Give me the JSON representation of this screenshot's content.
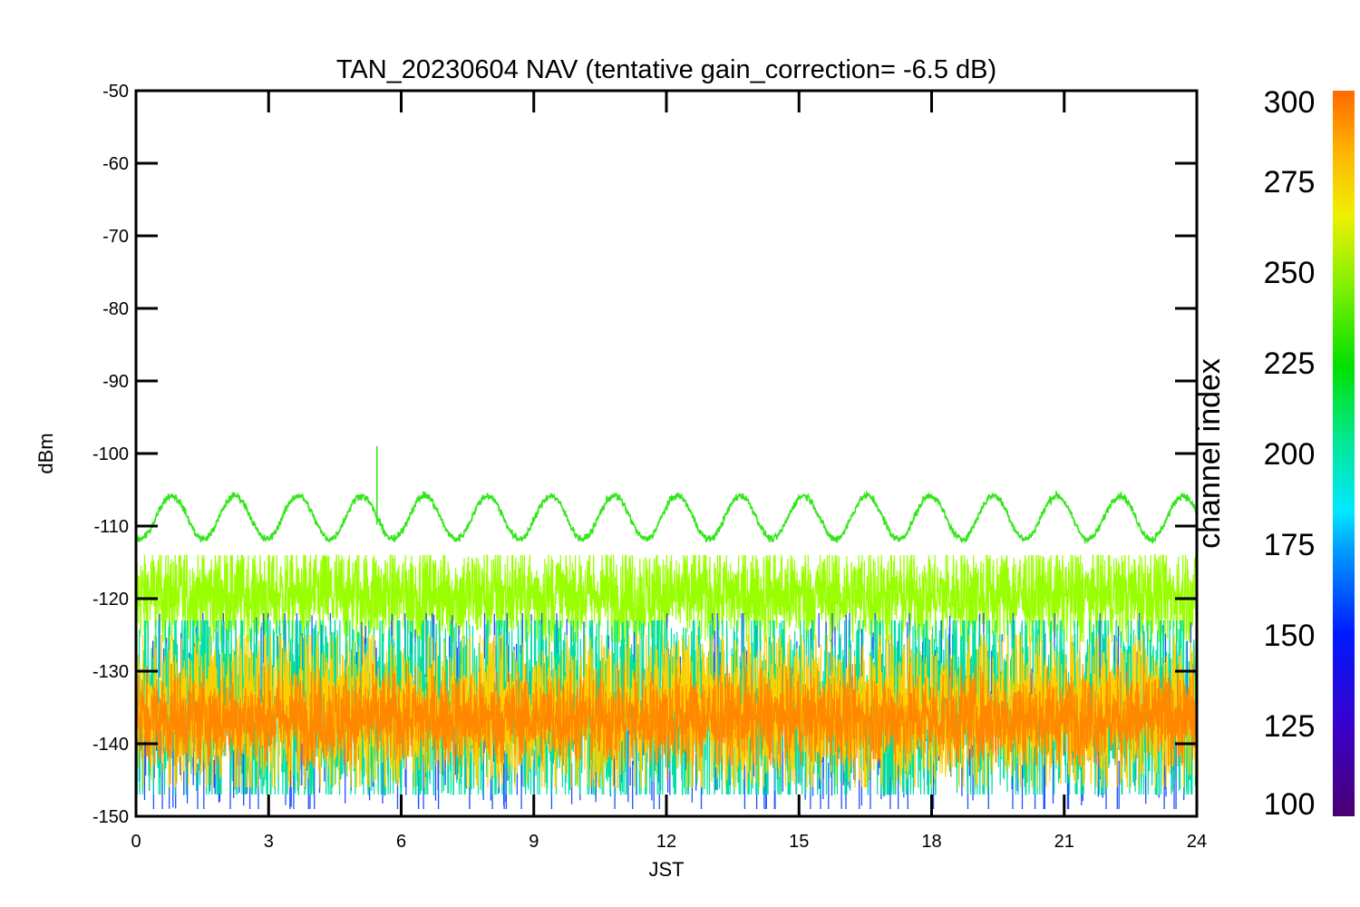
{
  "chart_data": {
    "type": "line",
    "title": "TAN_20230604 NAV (tentative gain_correction= -6.5 dB)",
    "xlabel": "JST",
    "ylabel": "dBm",
    "xlim": [
      0,
      24
    ],
    "ylim": [
      -150,
      -50
    ],
    "x_ticks": [
      "0",
      "3",
      "6",
      "9",
      "12",
      "15",
      "18",
      "21",
      "24"
    ],
    "y_ticks": [
      "-50",
      "-60",
      "-70",
      "-80",
      "-90",
      "-100",
      "-110",
      "-120",
      "-130",
      "-140",
      "-150"
    ],
    "colorbar": {
      "label": "channel index",
      "range": [
        100,
        300
      ],
      "ticks": [
        "300",
        "275",
        "250",
        "225",
        "200",
        "175",
        "150",
        "125",
        "100"
      ]
    },
    "series": [
      {
        "channel": 255,
        "color": "#33e61a",
        "shape": "sinusoidal",
        "mean_dbm": -108.8,
        "amplitude_db": 3.0,
        "period_hours": 1.43,
        "phase_hours": 0.45,
        "spike": {
          "x": 5.45,
          "y": -99
        }
      },
      {
        "channel": 262,
        "color": "#99ff00",
        "shape": "noise band",
        "center_dbm": -119.5,
        "spread_db": 3.5,
        "min_dbm": -126,
        "max_dbm": -114
      },
      {
        "channel": 150,
        "color": "#2050ff",
        "shape": "scattered spikes",
        "min_dbm": -149,
        "max_dbm": -122
      },
      {
        "channel": 195,
        "color": "#00e0a0",
        "shape": "noise band",
        "center_dbm": -135,
        "spread_db": 8,
        "min_dbm": -147,
        "max_dbm": -123
      },
      {
        "channel": 282,
        "color": "#ffd000",
        "shape": "noise band",
        "center_dbm": -135.5,
        "spread_db": 5.5,
        "min_dbm": -146,
        "max_dbm": -125
      },
      {
        "channel": 290,
        "color": "#ff8800",
        "shape": "noise band",
        "center_dbm": -136.5,
        "spread_db": 3.2,
        "min_dbm": -143,
        "max_dbm": -129
      }
    ]
  }
}
